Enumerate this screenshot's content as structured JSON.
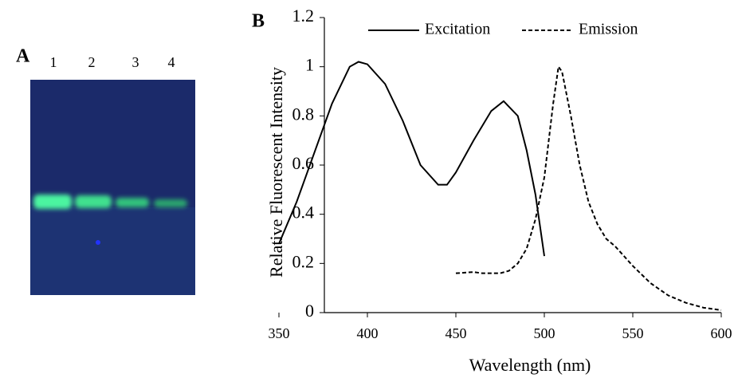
{
  "panel_a": {
    "label": "A",
    "lanes": [
      "1",
      "2",
      "3",
      "4"
    ]
  },
  "chart_data": {
    "type": "line",
    "panel_label": "B",
    "x_label": "Wavelength (nm)",
    "y_label": "Relative Fluorescent Intensity",
    "xlim": [
      350,
      600
    ],
    "xticks": [
      350,
      400,
      450,
      500,
      550,
      600
    ],
    "ylim": [
      0,
      1.2
    ],
    "yticks": [
      0,
      0.2,
      0.4,
      0.6,
      0.8,
      1,
      1.2
    ],
    "series": [
      {
        "name": "Excitation",
        "color": "#000000",
        "dash": "solid",
        "x": [
          350,
          360,
          370,
          380,
          390,
          395,
          400,
          410,
          420,
          430,
          440,
          445,
          450,
          460,
          470,
          477,
          485,
          490,
          495,
          500
        ],
        "values": [
          0.28,
          0.45,
          0.65,
          0.85,
          1.0,
          1.02,
          1.01,
          0.93,
          0.78,
          0.6,
          0.52,
          0.52,
          0.57,
          0.7,
          0.82,
          0.86,
          0.8,
          0.66,
          0.48,
          0.23
        ]
      },
      {
        "name": "Emission",
        "color": "#000000",
        "dash": "dashed",
        "x": [
          450,
          460,
          465,
          475,
          480,
          485,
          490,
          495,
          500,
          505,
          508,
          510,
          515,
          520,
          525,
          530,
          535,
          540,
          545,
          550,
          560,
          570,
          580,
          590,
          600
        ],
        "values": [
          0.16,
          0.165,
          0.16,
          0.16,
          0.17,
          0.2,
          0.26,
          0.38,
          0.55,
          0.85,
          1.0,
          0.98,
          0.8,
          0.6,
          0.45,
          0.36,
          0.3,
          0.27,
          0.23,
          0.19,
          0.12,
          0.07,
          0.04,
          0.02,
          0.01
        ]
      }
    ]
  }
}
